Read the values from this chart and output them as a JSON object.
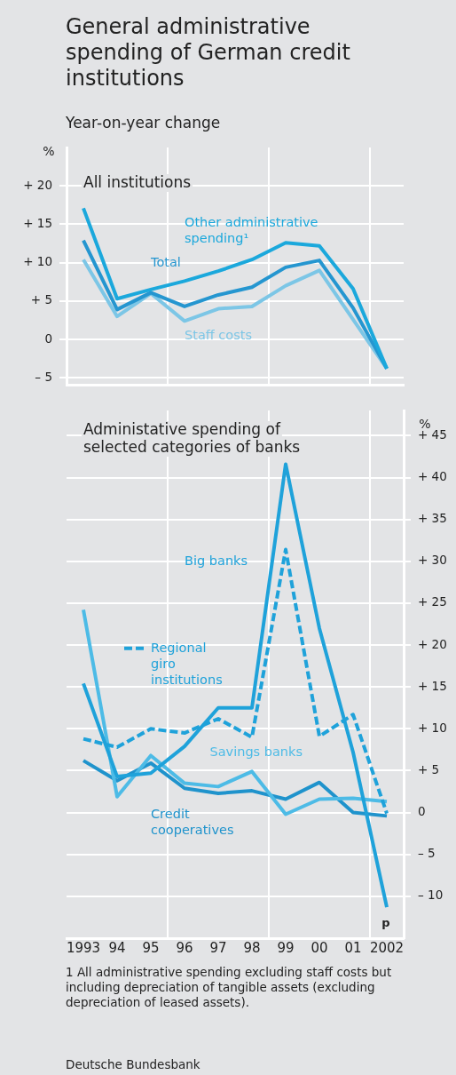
{
  "chart_data": [
    {
      "type": "line",
      "title": "General administrative spending of German credit institutions",
      "subtitle": "Year-on-year change",
      "ylabel": "%",
      "x": [
        1993,
        1994,
        1995,
        1996,
        1997,
        1998,
        1999,
        2000,
        2001,
        2002
      ],
      "xlim": [
        1992.5,
        2002.5
      ],
      "xticks": [
        {
          "value": 1995.5,
          "label": null
        },
        {
          "value": 1998.5,
          "label": null
        },
        {
          "value": 2001.5,
          "label": null
        }
      ],
      "ylim": [
        -6,
        25
      ],
      "yticks": [
        {
          "value": -5,
          "label": "– 5"
        },
        0,
        {
          "value": 5,
          "label": "+ 5"
        },
        {
          "value": 10,
          "label": "+ 10"
        },
        {
          "value": 15,
          "label": "+ 15"
        },
        {
          "value": 20,
          "label": "+ 20"
        }
      ],
      "tick_labels": "y",
      "grid": true,
      "annotations": [
        "All institutions"
      ],
      "series": [
        {
          "name": "Other administrative spending¹",
          "color": "#1ba8dc",
          "values": [
            17.1,
            5.3,
            6.5,
            7.6,
            8.9,
            10.4,
            12.6,
            12.2,
            6.6,
            -3.8
          ]
        },
        {
          "name": "Total",
          "color": "#2596d0",
          "values": [
            12.9,
            3.9,
            6.1,
            4.3,
            5.8,
            6.8,
            9.4,
            10.3,
            4.1,
            -3.8
          ]
        },
        {
          "name": "Staff costs",
          "color": "#7cc6e6",
          "values": [
            10.4,
            3.0,
            6.0,
            2.4,
            4.0,
            4.3,
            7.0,
            9.0,
            2.6,
            -3.8
          ]
        }
      ]
    },
    {
      "type": "line",
      "title": "Administative spending of selected categories of banks",
      "ylabel": "%",
      "x": [
        1993,
        1994,
        1995,
        1996,
        1997,
        1998,
        1999,
        2000,
        2001,
        2002
      ],
      "xlim": [
        1992.5,
        2002.5
      ],
      "xticks": [
        {
          "value": 1993,
          "label": "1993"
        },
        {
          "value": 1994,
          "label": "94"
        },
        {
          "value": 1995,
          "label": "95"
        },
        {
          "value": 1995.5,
          "label": null
        },
        {
          "value": 1996,
          "label": "96"
        },
        {
          "value": 1997,
          "label": "97"
        },
        {
          "value": 1998,
          "label": "98"
        },
        {
          "value": 1998.5,
          "label": null
        },
        {
          "value": 1999,
          "label": "99"
        },
        {
          "value": 2000,
          "label": "00"
        },
        {
          "value": 2001,
          "label": "01"
        },
        {
          "value": 2001.5,
          "label": null
        },
        {
          "value": 2002,
          "label": "2002"
        }
      ],
      "ylim": [
        -15,
        48
      ],
      "yticks": [
        {
          "value": -10,
          "label": "– 10"
        },
        {
          "value": -5,
          "label": "– 5"
        },
        0,
        {
          "value": 5,
          "label": "+ 5"
        },
        {
          "value": 10,
          "label": "+ 10"
        },
        {
          "value": 15,
          "label": "+ 15"
        },
        {
          "value": 20,
          "label": "+ 20"
        },
        {
          "value": 25,
          "label": "+ 25"
        },
        {
          "value": 30,
          "label": "+ 30"
        },
        {
          "value": 35,
          "label": "+ 35"
        },
        {
          "value": 40,
          "label": "+ 40"
        },
        {
          "value": 45,
          "label": "+ 45"
        }
      ],
      "grid": true,
      "annotations": [
        "p",
        "1 All administrative spending excluding staff costs but including depreciation of tangible assets (excluding depreciation of leased assets).",
        "Deutsche Bundesbank"
      ],
      "series": [
        {
          "name": "Big banks",
          "color": "#1fa2da",
          "values": [
            15.4,
            4.3,
            4.7,
            7.9,
            12.5,
            12.5,
            41.6,
            22.0,
            7.2,
            -11.3
          ]
        },
        {
          "name": "Regional giro institutions",
          "color": "#1fa2da",
          "line_style": "dashed",
          "values": [
            8.8,
            7.8,
            10.0,
            9.5,
            11.2,
            9.0,
            31.4,
            9.1,
            11.7,
            -0.1
          ]
        },
        {
          "name": "Savings banks",
          "color": "#4dbbe6",
          "values": [
            24.2,
            1.9,
            6.8,
            3.5,
            3.1,
            4.9,
            -0.2,
            1.6,
            1.7,
            1.3
          ]
        },
        {
          "name": "Credit cooperatives",
          "color": "#1f93cc",
          "values": [
            6.2,
            3.8,
            5.9,
            2.9,
            2.3,
            2.6,
            1.6,
            3.6,
            0.0,
            -0.4
          ]
        }
      ]
    }
  ]
}
